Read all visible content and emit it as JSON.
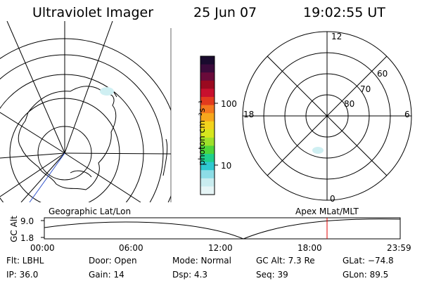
{
  "header": {
    "instrument": "Ultraviolet Imager",
    "date": "25 Jun 07",
    "time": "19:02:55 UT"
  },
  "geo_panel": {
    "label": "Geographic Lat/Lon"
  },
  "colorbar": {
    "unit_label": "photon cm⁻²s⁻¹",
    "ticks": [
      "100",
      "10"
    ],
    "scale": "log",
    "colors": [
      "#1a0a2e",
      "#3b0a3b",
      "#6a0a3a",
      "#9a0a20",
      "#c8102e",
      "#e23a1e",
      "#f4781e",
      "#f7a71c",
      "#f3d31d",
      "#d6e61e",
      "#9fe02a",
      "#4fd63a",
      "#1fd08c",
      "#2fc8d0",
      "#8ddde6",
      "#c9ecef",
      "#e6f5f6"
    ]
  },
  "polar_panel": {
    "label": "Apex MLat/MLT",
    "mlt_labels": {
      "top": "12",
      "bottom": "0",
      "left": "18",
      "right": "6"
    },
    "lat_labels": [
      "60",
      "70",
      "80"
    ]
  },
  "timeline": {
    "ylabel": "GC Alt",
    "y_ticks": [
      "9.0",
      "1.8"
    ],
    "x_ticks": [
      "00:00",
      "06:00",
      "12:00",
      "18:00",
      "23:59"
    ],
    "marker_color": "#e00000"
  },
  "info": {
    "flt": "Flt: LBHL",
    "door": "Door: Open",
    "mode": "Mode: Normal",
    "gcalt": "GC Alt: 7.3 Re",
    "glat": "GLat: −74.8",
    "ip": "IP: 36.0",
    "gain": "Gain: 14",
    "dsp": "Dsp:    4.3",
    "seq": "Seq: 39",
    "glon": "GLon: 89.5"
  }
}
